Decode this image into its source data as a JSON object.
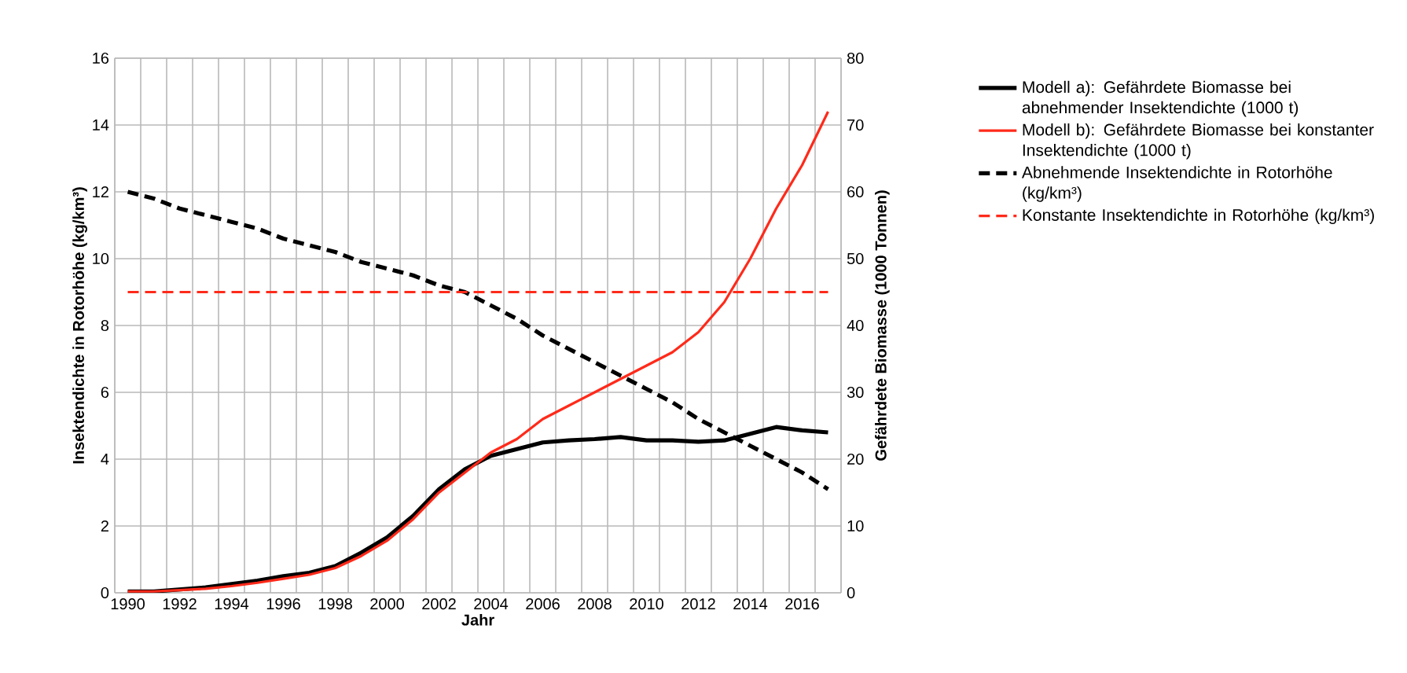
{
  "chart_data": {
    "type": "line",
    "xlabel": "Jahr",
    "ylabel": "Insektendichte in Rotorhöhe  (kg/km³)",
    "y2label": "Gefährdete Biomasse (1000 Tonnen)",
    "categories": [
      "1990",
      null,
      "1992",
      null,
      "1994",
      null,
      "1996",
      null,
      "1998",
      null,
      "2000",
      null,
      "2002",
      null,
      "2004",
      null,
      "2006",
      null,
      "2008",
      null,
      "2010",
      null,
      "2012",
      null,
      "2014",
      null,
      "2016",
      null
    ],
    "ylim": [
      0,
      16
    ],
    "yticks": [
      0,
      2,
      4,
      6,
      8,
      10,
      12,
      14,
      16
    ],
    "y2lim": [
      0,
      80
    ],
    "y2ticks": [
      0,
      10,
      20,
      30,
      40,
      50,
      60,
      70,
      80
    ],
    "grid": true,
    "legend": "right",
    "series": [
      {
        "name": "Modell a): Gefährdete Biomasse bei abnehmender Insektendichte (1000 t)",
        "color": "#000000",
        "axis": "y2",
        "line_style": "solid",
        "values": [
          0.2,
          0.2,
          0.5,
          0.8,
          1.3,
          1.8,
          2.5,
          3,
          4,
          6,
          8.3,
          11.5,
          15.5,
          18.5,
          20.5,
          21.5,
          22.5,
          22.8,
          23,
          23.3,
          22.8,
          22.8,
          22.6,
          22.8,
          23.8,
          24.8,
          24.3,
          24
        ]
      },
      {
        "name": "Modell b): Gefährdete Biomasse bei konstanter Insektendichte (1000 t)",
        "color": "#ff2a1a",
        "axis": "y2",
        "line_style": "solid",
        "values": [
          0.2,
          0.2,
          0.4,
          0.6,
          1,
          1.5,
          2.1,
          2.7,
          3.7,
          5.5,
          7.8,
          11,
          15,
          18,
          21,
          23,
          26,
          28,
          30,
          32,
          34,
          36,
          39,
          43.5,
          50,
          57.5,
          64,
          72
        ]
      },
      {
        "name": "Abnehmende Insektendichte in Rotorhöhe (kg/km³)",
        "color": "#000000",
        "axis": "y",
        "line_style": "dashed",
        "values": [
          12.0,
          11.8,
          11.5,
          11.3,
          11.1,
          10.9,
          10.6,
          10.4,
          10.2,
          9.9,
          9.7,
          9.5,
          9.2,
          9.0,
          8.6,
          8.2,
          7.7,
          7.3,
          6.9,
          6.5,
          6.1,
          5.7,
          5.2,
          4.8,
          4.4,
          4.0,
          3.6,
          3.1
        ]
      },
      {
        "name": "Konstante Insektendichte in Rotorhöhe (kg/km³)",
        "color": "#ff2a1a",
        "axis": "y",
        "line_style": "dashed",
        "values": [
          9,
          9,
          9,
          9,
          9,
          9,
          9,
          9,
          9,
          9,
          9,
          9,
          9,
          9,
          9,
          9,
          9,
          9,
          9,
          9,
          9,
          9,
          9,
          9,
          9,
          9,
          9,
          9
        ]
      }
    ]
  }
}
